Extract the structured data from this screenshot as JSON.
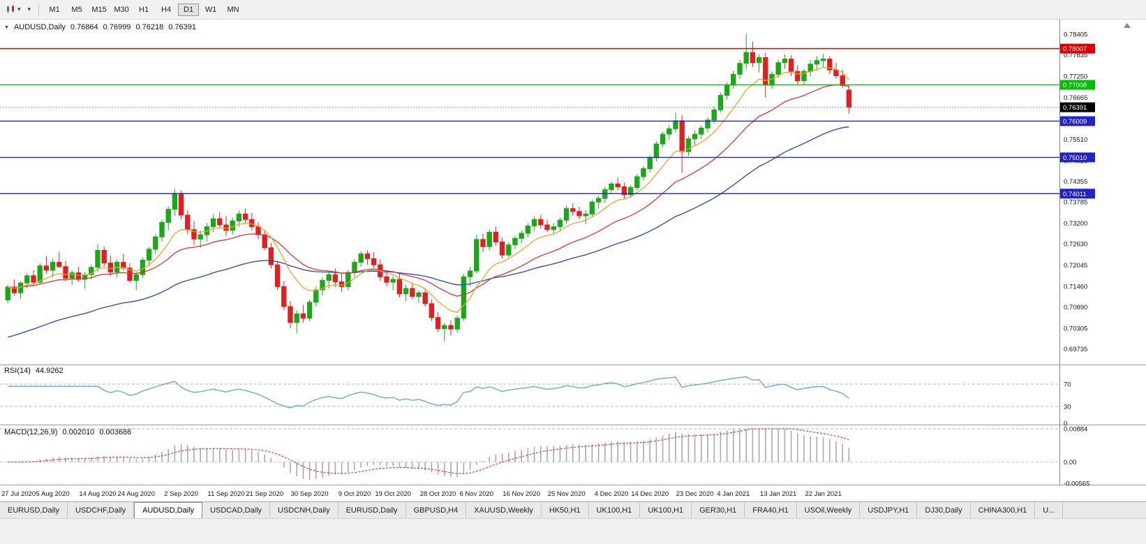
{
  "icons": {
    "caret_down": "▾",
    "chart_marker": "▼"
  },
  "toolbar": {
    "timeframes": [
      "M1",
      "M5",
      "M15",
      "M30",
      "H1",
      "H4",
      "D1",
      "W1",
      "MN"
    ],
    "active_timeframe": "D1"
  },
  "panels": {
    "price": {
      "symbol": "AUDUSD,Daily",
      "open": "0.76864",
      "high": "0.76999",
      "low": "0.76218",
      "close": "0.76391"
    },
    "rsi": {
      "name": "RSI(14)",
      "value": "44.9262"
    },
    "macd": {
      "name": "MACD(12,26,9)",
      "value": "0.002010",
      "signal": "0.003686"
    }
  },
  "tabs": {
    "active": "AUDUSD,Daily",
    "items": [
      {
        "label": "EURUSD,Daily"
      },
      {
        "label": "USDCHF,Daily"
      },
      {
        "label": "AUDUSD,Daily"
      },
      {
        "label": "USDCAD,Daily"
      },
      {
        "label": "USDCNH,Daily"
      },
      {
        "label": "EURUSD,Daily"
      },
      {
        "label": "GBPUSD,H4"
      },
      {
        "label": "XAUUSD,Weekly"
      },
      {
        "label": "HK50,H1"
      },
      {
        "label": "UK100,H1"
      },
      {
        "label": "UK100,H1"
      },
      {
        "label": "GER30,H1"
      },
      {
        "label": "FRA40,H1"
      },
      {
        "label": "USOil,Weekly"
      },
      {
        "label": "USDJPY,H1"
      },
      {
        "label": "DJ30,Daily"
      },
      {
        "label": "CHINA300,H1"
      },
      {
        "label": "U..."
      }
    ]
  },
  "chart_data": {
    "type": "candlestick",
    "symbol": "AUDUSD",
    "timeframe": "Daily",
    "last_ohlc": {
      "open": 0.76864,
      "high": 0.76999,
      "low": 0.76218,
      "close": 0.76391
    },
    "price_axis_ticks": [
      "0.78405",
      "0.77835",
      "0.77250",
      "0.76665",
      "0.76080",
      "0.75510",
      "0.74925",
      "0.74355",
      "0.73785",
      "0.73200",
      "0.72630",
      "0.72045",
      "0.71460",
      "0.70890",
      "0.70305",
      "0.69735"
    ],
    "horizontal_lines": [
      {
        "value": 0.78007,
        "label": "0.78007",
        "color": "#e00000"
      },
      {
        "value": 0.77008,
        "label": "0.77008",
        "color": "#00c000"
      },
      {
        "value": 0.76009,
        "label": "0.76009",
        "color": "#2222cc"
      },
      {
        "value": 0.7501,
        "label": "0.75010",
        "color": "#2222cc"
      },
      {
        "value": 0.74011,
        "label": "0.74011",
        "color": "#2222cc"
      }
    ],
    "current_price": {
      "value": 0.76391,
      "label": "0.76391",
      "badge_color": "#000000"
    },
    "date_labels": [
      {
        "i": 0,
        "label": "27 Jul 2020"
      },
      {
        "i": 7,
        "label": "5 Aug 2020"
      },
      {
        "i": 14,
        "label": "14 Aug 2020"
      },
      {
        "i": 20,
        "label": "24 Aug 2020"
      },
      {
        "i": 27,
        "label": "2 Sep 2020"
      },
      {
        "i": 34,
        "label": "11 Sep 2020"
      },
      {
        "i": 40,
        "label": "21 Sep 2020"
      },
      {
        "i": 47,
        "label": "30 Sep 2020"
      },
      {
        "i": 54,
        "label": "9 Oct 2020"
      },
      {
        "i": 60,
        "label": "19 Oct 2020"
      },
      {
        "i": 67,
        "label": "28 Oct 2020"
      },
      {
        "i": 73,
        "label": "6 Nov 2020"
      },
      {
        "i": 80,
        "label": "16 Nov 2020"
      },
      {
        "i": 87,
        "label": "25 Nov 2020"
      },
      {
        "i": 94,
        "label": "4 Dec 2020"
      },
      {
        "i": 100,
        "label": "14 Dec 2020"
      },
      {
        "i": 107,
        "label": "23 Dec 2020"
      },
      {
        "i": 113,
        "label": "4 Jan 2021"
      },
      {
        "i": 120,
        "label": "13 Jan 2021"
      },
      {
        "i": 127,
        "label": "22 Jan 2021"
      }
    ],
    "rsi": {
      "label": "RSI(14)",
      "value": 44.9262,
      "period": 14,
      "levels": [
        "70",
        "30",
        "0"
      ],
      "level_values": [
        70,
        30,
        0
      ]
    },
    "macd": {
      "label": "MACD(12,26,9)",
      "macd": 0.00201,
      "signal": 0.003686,
      "axis_labels": [
        "0.00884",
        "0.00",
        "-0.00565"
      ],
      "axis_values": [
        0.00884,
        0,
        -0.00565
      ]
    },
    "colors": {
      "up": "#18a818",
      "down": "#e02020",
      "ma_fast": "#eda32b",
      "ma_mid": "#e03232",
      "ma_slow": "#2244cc",
      "rsi_line": "#69a8d8",
      "macd_hist": "#a9a9a9",
      "macd_signal": "#d04040",
      "red_line": "#e00000",
      "green_line": "#00c000",
      "blue_line": "#2222cc"
    },
    "candles": [
      [
        0.7108,
        0.715,
        0.71,
        0.7144
      ],
      [
        0.7144,
        0.7165,
        0.712,
        0.7128
      ],
      [
        0.7128,
        0.716,
        0.7112,
        0.7155
      ],
      [
        0.7155,
        0.7182,
        0.714,
        0.7175
      ],
      [
        0.7175,
        0.719,
        0.7148,
        0.7157
      ],
      [
        0.7157,
        0.721,
        0.715,
        0.7202
      ],
      [
        0.7202,
        0.723,
        0.718,
        0.719
      ],
      [
        0.719,
        0.7222,
        0.717,
        0.7212
      ],
      [
        0.7212,
        0.7241,
        0.7195,
        0.72
      ],
      [
        0.72,
        0.7215,
        0.716,
        0.7168
      ],
      [
        0.7168,
        0.719,
        0.715,
        0.7183
      ],
      [
        0.7183,
        0.72,
        0.7158,
        0.7165
      ],
      [
        0.7165,
        0.7185,
        0.714,
        0.7178
      ],
      [
        0.7178,
        0.7205,
        0.7165,
        0.7198
      ],
      [
        0.7198,
        0.7262,
        0.7185,
        0.7245
      ],
      [
        0.7245,
        0.7255,
        0.72,
        0.721
      ],
      [
        0.721,
        0.723,
        0.7175,
        0.7185
      ],
      [
        0.7185,
        0.722,
        0.717,
        0.7212
      ],
      [
        0.7212,
        0.7235,
        0.719,
        0.7196
      ],
      [
        0.7196,
        0.721,
        0.7155,
        0.7162
      ],
      [
        0.7162,
        0.7185,
        0.7135,
        0.7178
      ],
      [
        0.7178,
        0.7225,
        0.717,
        0.7218
      ],
      [
        0.7218,
        0.7255,
        0.72,
        0.7248
      ],
      [
        0.7248,
        0.729,
        0.7235,
        0.7282
      ],
      [
        0.7282,
        0.733,
        0.727,
        0.7322
      ],
      [
        0.7322,
        0.7366,
        0.73,
        0.7358
      ],
      [
        0.7358,
        0.7414,
        0.734,
        0.7402
      ],
      [
        0.7402,
        0.741,
        0.733,
        0.7342
      ],
      [
        0.7342,
        0.7355,
        0.729,
        0.7302
      ],
      [
        0.7302,
        0.7325,
        0.726,
        0.7276
      ],
      [
        0.7276,
        0.73,
        0.7252,
        0.7288
      ],
      [
        0.7288,
        0.732,
        0.727,
        0.731
      ],
      [
        0.731,
        0.7345,
        0.7295,
        0.7332
      ],
      [
        0.7332,
        0.735,
        0.7305,
        0.7315
      ],
      [
        0.7315,
        0.734,
        0.7285,
        0.73
      ],
      [
        0.73,
        0.7335,
        0.7288,
        0.7326
      ],
      [
        0.7326,
        0.7355,
        0.731,
        0.7345
      ],
      [
        0.7345,
        0.736,
        0.7318,
        0.733
      ],
      [
        0.733,
        0.7348,
        0.73,
        0.731
      ],
      [
        0.731,
        0.7322,
        0.7276,
        0.7288
      ],
      [
        0.7288,
        0.73,
        0.7245,
        0.7252
      ],
      [
        0.7252,
        0.7265,
        0.7195,
        0.7205
      ],
      [
        0.7205,
        0.7215,
        0.7135,
        0.7145
      ],
      [
        0.7145,
        0.716,
        0.708,
        0.709
      ],
      [
        0.709,
        0.7105,
        0.703,
        0.7046
      ],
      [
        0.7046,
        0.708,
        0.7016,
        0.707
      ],
      [
        0.707,
        0.7095,
        0.7045,
        0.7058
      ],
      [
        0.7058,
        0.711,
        0.705,
        0.7102
      ],
      [
        0.7102,
        0.7145,
        0.709,
        0.7136
      ],
      [
        0.7136,
        0.717,
        0.712,
        0.7162
      ],
      [
        0.7162,
        0.7185,
        0.714,
        0.7178
      ],
      [
        0.7178,
        0.7195,
        0.7145,
        0.7158
      ],
      [
        0.7158,
        0.718,
        0.713,
        0.7145
      ],
      [
        0.7145,
        0.719,
        0.7135,
        0.7184
      ],
      [
        0.7184,
        0.722,
        0.717,
        0.7212
      ],
      [
        0.7212,
        0.7243,
        0.72,
        0.7235
      ],
      [
        0.7235,
        0.7245,
        0.7205,
        0.7222
      ],
      [
        0.7222,
        0.724,
        0.719,
        0.7205
      ],
      [
        0.7205,
        0.722,
        0.716,
        0.7172
      ],
      [
        0.7172,
        0.719,
        0.7145,
        0.7157
      ],
      [
        0.7157,
        0.7175,
        0.7135,
        0.7165
      ],
      [
        0.7165,
        0.718,
        0.7115,
        0.7125
      ],
      [
        0.7125,
        0.715,
        0.7105,
        0.714
      ],
      [
        0.714,
        0.7155,
        0.711,
        0.7118
      ],
      [
        0.7118,
        0.7135,
        0.71,
        0.7128
      ],
      [
        0.7128,
        0.714,
        0.709,
        0.7098
      ],
      [
        0.7098,
        0.711,
        0.705,
        0.706
      ],
      [
        0.706,
        0.7075,
        0.702,
        0.7029
      ],
      [
        0.7029,
        0.7045,
        0.6994,
        0.7038
      ],
      [
        0.7038,
        0.7052,
        0.701,
        0.7028
      ],
      [
        0.7028,
        0.7065,
        0.7018,
        0.7058
      ],
      [
        0.7058,
        0.718,
        0.705,
        0.7172
      ],
      [
        0.7172,
        0.72,
        0.7145,
        0.7188
      ],
      [
        0.7188,
        0.7288,
        0.718,
        0.7275
      ],
      [
        0.7275,
        0.729,
        0.724,
        0.7255
      ],
      [
        0.7255,
        0.7302,
        0.7245,
        0.7295
      ],
      [
        0.7295,
        0.731,
        0.7258,
        0.7268
      ],
      [
        0.7268,
        0.728,
        0.7222,
        0.7232
      ],
      [
        0.7232,
        0.7268,
        0.7225,
        0.726
      ],
      [
        0.726,
        0.7285,
        0.7248,
        0.7278
      ],
      [
        0.7278,
        0.73,
        0.7265,
        0.7292
      ],
      [
        0.7292,
        0.732,
        0.728,
        0.7312
      ],
      [
        0.7312,
        0.7339,
        0.7298,
        0.733
      ],
      [
        0.733,
        0.7342,
        0.7305,
        0.7315
      ],
      [
        0.7315,
        0.733,
        0.7295,
        0.7302
      ],
      [
        0.7302,
        0.732,
        0.7288,
        0.731
      ],
      [
        0.731,
        0.7335,
        0.73,
        0.7328
      ],
      [
        0.7328,
        0.7368,
        0.7318,
        0.736
      ],
      [
        0.736,
        0.7374,
        0.734,
        0.7352
      ],
      [
        0.7352,
        0.7365,
        0.733,
        0.734
      ],
      [
        0.734,
        0.7356,
        0.7317,
        0.7345
      ],
      [
        0.7345,
        0.7385,
        0.7338,
        0.7378
      ],
      [
        0.7378,
        0.7395,
        0.736,
        0.7388
      ],
      [
        0.7388,
        0.742,
        0.7375,
        0.7412
      ],
      [
        0.7412,
        0.7435,
        0.74,
        0.7428
      ],
      [
        0.7428,
        0.7445,
        0.741,
        0.742
      ],
      [
        0.742,
        0.7432,
        0.7385,
        0.7398
      ],
      [
        0.7398,
        0.7425,
        0.739,
        0.7418
      ],
      [
        0.7418,
        0.7455,
        0.741,
        0.7448
      ],
      [
        0.7448,
        0.7478,
        0.7438,
        0.747
      ],
      [
        0.747,
        0.7508,
        0.746,
        0.75
      ],
      [
        0.75,
        0.7545,
        0.749,
        0.7538
      ],
      [
        0.7538,
        0.7572,
        0.7528,
        0.7565
      ],
      [
        0.7565,
        0.759,
        0.755,
        0.758
      ],
      [
        0.758,
        0.7624,
        0.757,
        0.7602
      ],
      [
        0.7602,
        0.7618,
        0.7458,
        0.7517
      ],
      [
        0.7517,
        0.756,
        0.7505,
        0.7552
      ],
      [
        0.7552,
        0.7575,
        0.7535,
        0.7565
      ],
      [
        0.7565,
        0.759,
        0.755,
        0.7582
      ],
      [
        0.7582,
        0.7612,
        0.757,
        0.7604
      ],
      [
        0.7604,
        0.764,
        0.7595,
        0.7632
      ],
      [
        0.7632,
        0.768,
        0.7625,
        0.7672
      ],
      [
        0.7672,
        0.7708,
        0.766,
        0.77
      ],
      [
        0.77,
        0.774,
        0.769,
        0.773
      ],
      [
        0.773,
        0.777,
        0.7718,
        0.776
      ],
      [
        0.776,
        0.7842,
        0.7745,
        0.779
      ],
      [
        0.779,
        0.782,
        0.775,
        0.7762
      ],
      [
        0.7762,
        0.7785,
        0.7735,
        0.7776
      ],
      [
        0.7776,
        0.779,
        0.7666,
        0.77
      ],
      [
        0.77,
        0.7738,
        0.769,
        0.773
      ],
      [
        0.773,
        0.777,
        0.772,
        0.7762
      ],
      [
        0.7762,
        0.7785,
        0.7745,
        0.7772
      ],
      [
        0.7772,
        0.7782,
        0.7725,
        0.7738
      ],
      [
        0.7738,
        0.7755,
        0.7702,
        0.7712
      ],
      [
        0.7712,
        0.7745,
        0.77,
        0.7738
      ],
      [
        0.7738,
        0.7768,
        0.7725,
        0.7758
      ],
      [
        0.7758,
        0.778,
        0.774,
        0.7768
      ],
      [
        0.7768,
        0.7786,
        0.7748,
        0.7772
      ],
      [
        0.7772,
        0.778,
        0.773,
        0.7742
      ],
      [
        0.7742,
        0.7762,
        0.7718,
        0.7726
      ],
      [
        0.7726,
        0.7742,
        0.7692,
        0.7699
      ],
      [
        0.76864,
        0.76999,
        0.76218,
        0.76391
      ]
    ]
  }
}
